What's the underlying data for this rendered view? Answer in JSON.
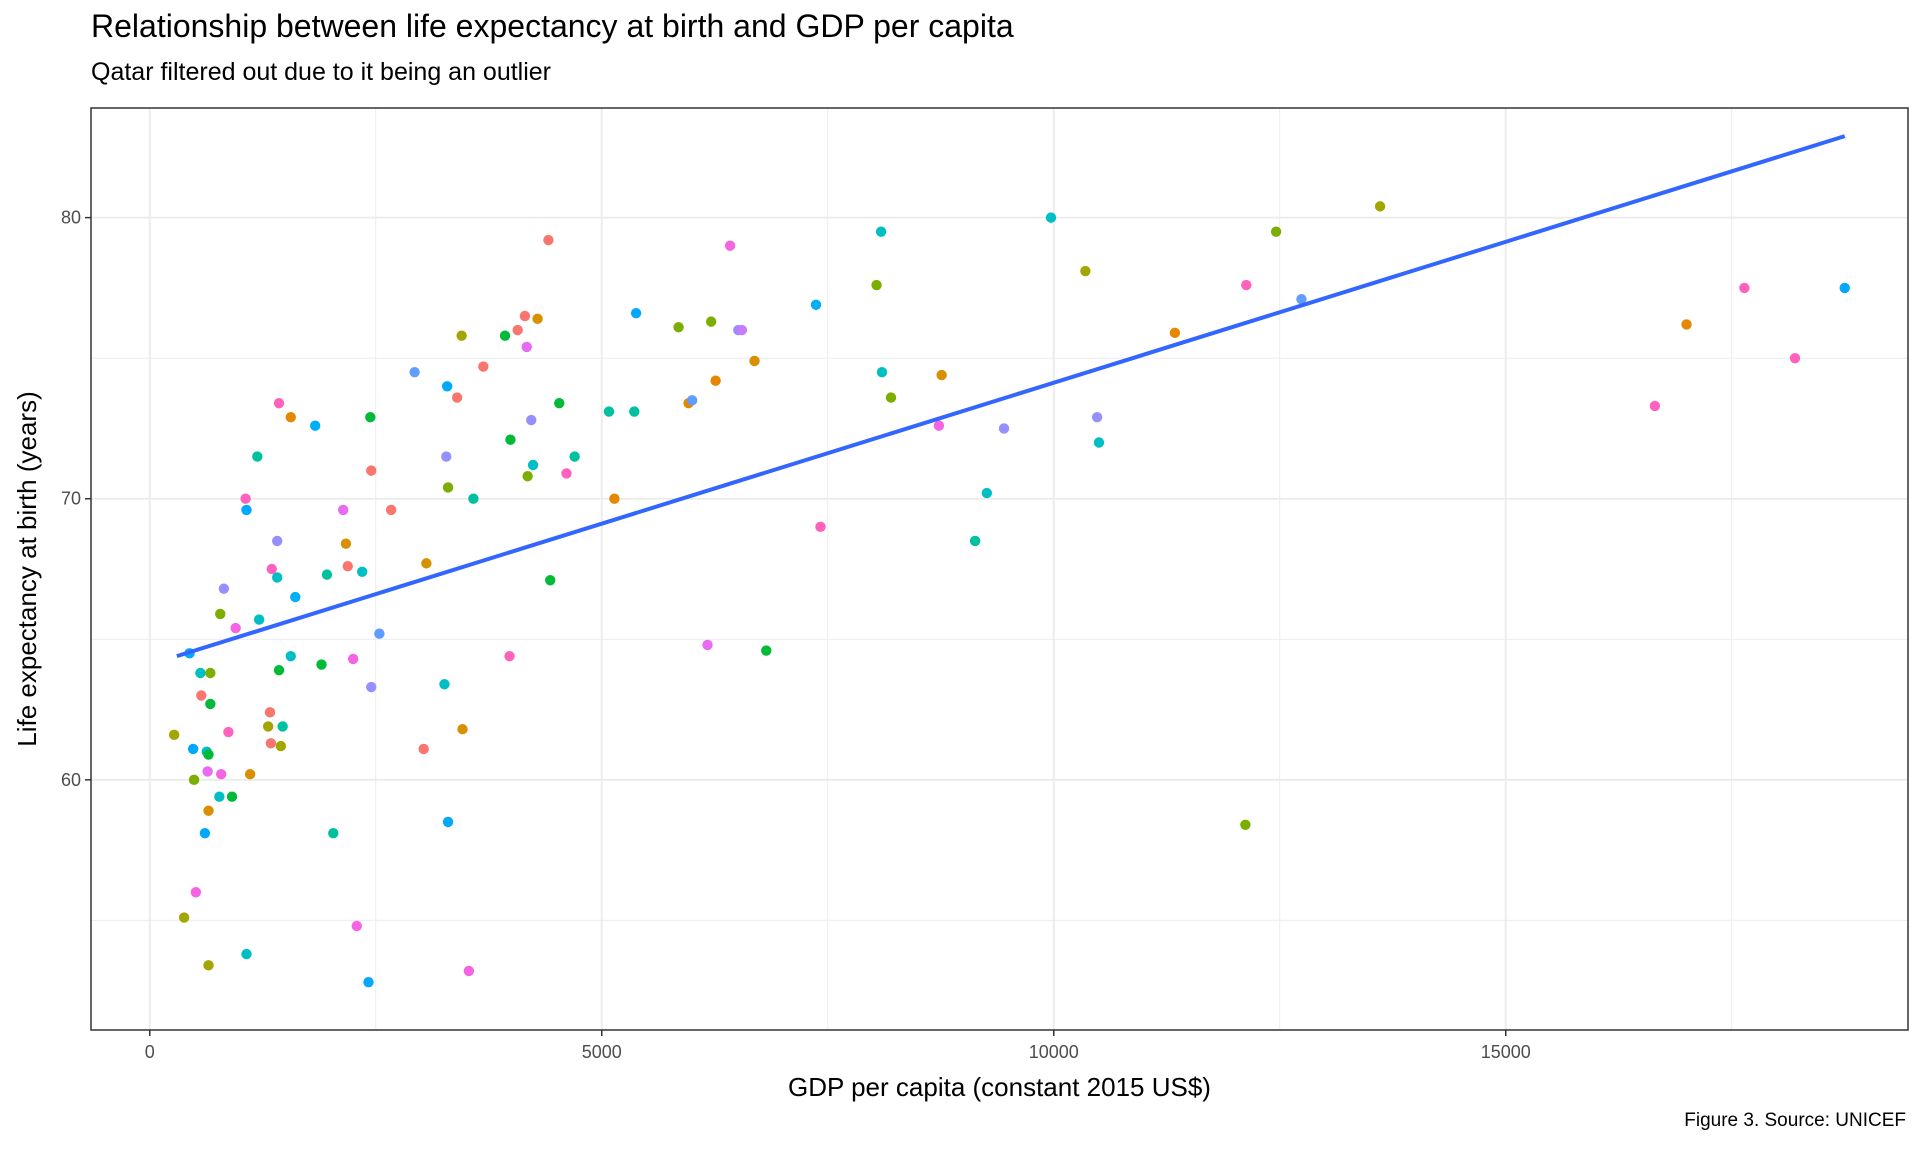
{
  "chart_data": {
    "type": "scatter",
    "title": "Relationship between life expectancy at birth and GDP per capita",
    "subtitle": "Qatar filtered out due to it being an outlier",
    "xlabel": "GDP per capita (constant 2015 US$)",
    "ylabel": "Life expectancy at birth (years)",
    "caption": "Figure 3. Source: UNICEF",
    "xlim": [
      -650,
      19450
    ],
    "ylim": [
      51.1,
      83.9
    ],
    "x_ticks": [
      0,
      5000,
      10000,
      15000
    ],
    "x_tick_labels": [
      "0",
      "5000",
      "10000",
      "15000"
    ],
    "y_ticks": [
      60,
      70,
      80
    ],
    "y_tick_labels": [
      "60",
      "70",
      "80"
    ],
    "grid": true,
    "legend": "none",
    "trend_line": {
      "type": "linear",
      "x": [
        300,
        18750
      ],
      "y": [
        64.4,
        82.9
      ],
      "color": "#3366ff"
    },
    "points": [
      {
        "x": 270,
        "y": 61.6,
        "color": "#a3a500"
      },
      {
        "x": 380,
        "y": 55.1,
        "color": "#a3a500"
      },
      {
        "x": 440,
        "y": 64.5,
        "color": "#00a9ff"
      },
      {
        "x": 480,
        "y": 61.1,
        "color": "#00a9ff"
      },
      {
        "x": 490,
        "y": 60.0,
        "color": "#7cae00"
      },
      {
        "x": 510,
        "y": 56.0,
        "color": "#f564e3"
      },
      {
        "x": 560,
        "y": 63.8,
        "color": "#00bfc4"
      },
      {
        "x": 570,
        "y": 63.0,
        "color": "#f8766d"
      },
      {
        "x": 610,
        "y": 58.1,
        "color": "#00a9ff"
      },
      {
        "x": 630,
        "y": 61.0,
        "color": "#00bfc4"
      },
      {
        "x": 640,
        "y": 60.3,
        "color": "#e76bf3"
      },
      {
        "x": 650,
        "y": 60.9,
        "color": "#00ba38"
      },
      {
        "x": 650,
        "y": 53.4,
        "color": "#a3a500"
      },
      {
        "x": 650,
        "y": 58.9,
        "color": "#d89000"
      },
      {
        "x": 670,
        "y": 62.7,
        "color": "#00ba38"
      },
      {
        "x": 670,
        "y": 63.8,
        "color": "#7cae00"
      },
      {
        "x": 770,
        "y": 59.4,
        "color": "#00bfc4"
      },
      {
        "x": 780,
        "y": 65.9,
        "color": "#7cae00"
      },
      {
        "x": 790,
        "y": 60.2,
        "color": "#f564e3"
      },
      {
        "x": 820,
        "y": 66.8,
        "color": "#9590ff"
      },
      {
        "x": 870,
        "y": 61.7,
        "color": "#ff62bc"
      },
      {
        "x": 910,
        "y": 59.4,
        "color": "#00ba38"
      },
      {
        "x": 950,
        "y": 65.4,
        "color": "#f564e3"
      },
      {
        "x": 1060,
        "y": 70.0,
        "color": "#ff62bc"
      },
      {
        "x": 1070,
        "y": 53.8,
        "color": "#00bfc4"
      },
      {
        "x": 1070,
        "y": 69.6,
        "color": "#00a9ff"
      },
      {
        "x": 1110,
        "y": 60.2,
        "color": "#d89000"
      },
      {
        "x": 1190,
        "y": 71.5,
        "color": "#00c19f"
      },
      {
        "x": 1210,
        "y": 65.7,
        "color": "#00bfc4"
      },
      {
        "x": 1310,
        "y": 61.9,
        "color": "#a3a500"
      },
      {
        "x": 1330,
        "y": 62.4,
        "color": "#f8766d"
      },
      {
        "x": 1340,
        "y": 61.3,
        "color": "#f8766d"
      },
      {
        "x": 1350,
        "y": 67.5,
        "color": "#ff62bc"
      },
      {
        "x": 1410,
        "y": 68.5,
        "color": "#9590ff"
      },
      {
        "x": 1410,
        "y": 67.2,
        "color": "#00bfc4"
      },
      {
        "x": 1430,
        "y": 73.4,
        "color": "#ff62bc"
      },
      {
        "x": 1430,
        "y": 63.9,
        "color": "#00ba38"
      },
      {
        "x": 1450,
        "y": 61.2,
        "color": "#a3a500"
      },
      {
        "x": 1470,
        "y": 61.9,
        "color": "#00c19f"
      },
      {
        "x": 1560,
        "y": 64.4,
        "color": "#00bfc4"
      },
      {
        "x": 1560,
        "y": 72.9,
        "color": "#e58700"
      },
      {
        "x": 1610,
        "y": 66.5,
        "color": "#00b0f6"
      },
      {
        "x": 1830,
        "y": 72.6,
        "color": "#00b0f6"
      },
      {
        "x": 1900,
        "y": 64.1,
        "color": "#00ba38"
      },
      {
        "x": 1960,
        "y": 67.3,
        "color": "#00c19f"
      },
      {
        "x": 2030,
        "y": 58.1,
        "color": "#00c19f"
      },
      {
        "x": 2140,
        "y": 69.6,
        "color": "#e76bf3"
      },
      {
        "x": 2170,
        "y": 68.4,
        "color": "#d89000"
      },
      {
        "x": 2190,
        "y": 67.6,
        "color": "#f8766d"
      },
      {
        "x": 2250,
        "y": 64.3,
        "color": "#f564e3"
      },
      {
        "x": 2290,
        "y": 54.8,
        "color": "#f564e3"
      },
      {
        "x": 2350,
        "y": 67.4,
        "color": "#00bfc4"
      },
      {
        "x": 2420,
        "y": 52.8,
        "color": "#00a9ff"
      },
      {
        "x": 2440,
        "y": 72.9,
        "color": "#00ba38"
      },
      {
        "x": 2450,
        "y": 63.3,
        "color": "#9590ff"
      },
      {
        "x": 2450,
        "y": 71.0,
        "color": "#f8766d"
      },
      {
        "x": 2540,
        "y": 65.2,
        "color": "#619cff"
      },
      {
        "x": 2670,
        "y": 69.6,
        "color": "#f8766d"
      },
      {
        "x": 2930,
        "y": 74.5,
        "color": "#619cff"
      },
      {
        "x": 3030,
        "y": 61.1,
        "color": "#f8766d"
      },
      {
        "x": 3060,
        "y": 67.7,
        "color": "#d89000"
      },
      {
        "x": 3260,
        "y": 63.4,
        "color": "#00bfc4"
      },
      {
        "x": 3280,
        "y": 71.5,
        "color": "#9590ff"
      },
      {
        "x": 3290,
        "y": 74.0,
        "color": "#00a9ff"
      },
      {
        "x": 3300,
        "y": 70.4,
        "color": "#7cae00"
      },
      {
        "x": 3300,
        "y": 58.5,
        "color": "#00a9ff"
      },
      {
        "x": 3400,
        "y": 73.6,
        "color": "#f8766d"
      },
      {
        "x": 3450,
        "y": 75.8,
        "color": "#a3a500"
      },
      {
        "x": 3460,
        "y": 61.8,
        "color": "#d89000"
      },
      {
        "x": 3530,
        "y": 53.2,
        "color": "#f564e3"
      },
      {
        "x": 3580,
        "y": 70.0,
        "color": "#00c19f"
      },
      {
        "x": 3690,
        "y": 74.7,
        "color": "#f8766d"
      },
      {
        "x": 3930,
        "y": 75.8,
        "color": "#00ba38"
      },
      {
        "x": 3980,
        "y": 64.4,
        "color": "#ff62bc"
      },
      {
        "x": 3990,
        "y": 72.1,
        "color": "#00ba38"
      },
      {
        "x": 4070,
        "y": 76.0,
        "color": "#f8766d"
      },
      {
        "x": 4150,
        "y": 76.5,
        "color": "#f8766d"
      },
      {
        "x": 4170,
        "y": 75.4,
        "color": "#e76bf3"
      },
      {
        "x": 4180,
        "y": 70.8,
        "color": "#7cae00"
      },
      {
        "x": 4220,
        "y": 72.8,
        "color": "#9590ff"
      },
      {
        "x": 4240,
        "y": 71.2,
        "color": "#00bfc4"
      },
      {
        "x": 4290,
        "y": 76.4,
        "color": "#d89000"
      },
      {
        "x": 4410,
        "y": 79.2,
        "color": "#f8766d"
      },
      {
        "x": 4430,
        "y": 67.1,
        "color": "#00ba38"
      },
      {
        "x": 4530,
        "y": 73.4,
        "color": "#00ba38"
      },
      {
        "x": 4610,
        "y": 70.9,
        "color": "#ff62bc"
      },
      {
        "x": 4700,
        "y": 71.5,
        "color": "#00c19f"
      },
      {
        "x": 5080,
        "y": 73.1,
        "color": "#00c19f"
      },
      {
        "x": 5140,
        "y": 70.0,
        "color": "#e58700"
      },
      {
        "x": 5360,
        "y": 73.1,
        "color": "#00c19f"
      },
      {
        "x": 5380,
        "y": 76.6,
        "color": "#00a9ff"
      },
      {
        "x": 5850,
        "y": 76.1,
        "color": "#7cae00"
      },
      {
        "x": 5960,
        "y": 73.4,
        "color": "#e58700"
      },
      {
        "x": 6000,
        "y": 73.5,
        "color": "#619cff"
      },
      {
        "x": 6170,
        "y": 64.8,
        "color": "#e76bf3"
      },
      {
        "x": 6210,
        "y": 76.3,
        "color": "#7cae00"
      },
      {
        "x": 6260,
        "y": 74.2,
        "color": "#e58700"
      },
      {
        "x": 6420,
        "y": 79.0,
        "color": "#f564e3"
      },
      {
        "x": 6510,
        "y": 76.0,
        "color": "#9590ff"
      },
      {
        "x": 6550,
        "y": 76.0,
        "color": "#c77cff"
      },
      {
        "x": 6690,
        "y": 74.9,
        "color": "#d89000"
      },
      {
        "x": 6820,
        "y": 64.6,
        "color": "#00ba38"
      },
      {
        "x": 7370,
        "y": 76.9,
        "color": "#00b0f6"
      },
      {
        "x": 7420,
        "y": 69.0,
        "color": "#ff62bc"
      },
      {
        "x": 8040,
        "y": 77.6,
        "color": "#7cae00"
      },
      {
        "x": 8090,
        "y": 79.5,
        "color": "#00bfc4"
      },
      {
        "x": 8100,
        "y": 74.5,
        "color": "#00bfc4"
      },
      {
        "x": 8200,
        "y": 73.6,
        "color": "#7cae00"
      },
      {
        "x": 8730,
        "y": 72.6,
        "color": "#f564e3"
      },
      {
        "x": 8760,
        "y": 74.4,
        "color": "#d89000"
      },
      {
        "x": 9130,
        "y": 68.5,
        "color": "#00c19f"
      },
      {
        "x": 9260,
        "y": 70.2,
        "color": "#00bfc4"
      },
      {
        "x": 9450,
        "y": 72.5,
        "color": "#9590ff"
      },
      {
        "x": 9970,
        "y": 80.0,
        "color": "#00bfc4"
      },
      {
        "x": 10350,
        "y": 78.1,
        "color": "#a3a500"
      },
      {
        "x": 10480,
        "y": 72.9,
        "color": "#9590ff"
      },
      {
        "x": 10500,
        "y": 72.0,
        "color": "#00bfc4"
      },
      {
        "x": 11340,
        "y": 75.9,
        "color": "#e58700"
      },
      {
        "x": 12120,
        "y": 58.4,
        "color": "#7cae00"
      },
      {
        "x": 12130,
        "y": 77.6,
        "color": "#ff62bc"
      },
      {
        "x": 12460,
        "y": 79.5,
        "color": "#7cae00"
      },
      {
        "x": 12740,
        "y": 77.1,
        "color": "#619cff"
      },
      {
        "x": 13610,
        "y": 80.4,
        "color": "#a3a500"
      },
      {
        "x": 16650,
        "y": 73.3,
        "color": "#ff62bc"
      },
      {
        "x": 17000,
        "y": 76.2,
        "color": "#e58700"
      },
      {
        "x": 17640,
        "y": 77.5,
        "color": "#ff62bc"
      },
      {
        "x": 18200,
        "y": 75.0,
        "color": "#ff62bc"
      },
      {
        "x": 18750,
        "y": 77.5,
        "color": "#00a9ff"
      }
    ]
  }
}
